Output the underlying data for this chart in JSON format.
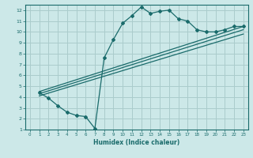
{
  "xlabel": "Humidex (Indice chaleur)",
  "xlim": [
    -0.5,
    23.5
  ],
  "ylim": [
    1,
    12.5
  ],
  "xticks": [
    0,
    1,
    2,
    3,
    4,
    5,
    6,
    7,
    8,
    9,
    10,
    11,
    12,
    13,
    14,
    15,
    16,
    17,
    18,
    19,
    20,
    21,
    22,
    23
  ],
  "yticks": [
    1,
    2,
    3,
    4,
    5,
    6,
    7,
    8,
    9,
    10,
    11,
    12
  ],
  "bg_color": "#cce8e8",
  "grid_color": "#aacccc",
  "line_color": "#1a6b6b",
  "line1_x": [
    1,
    2,
    3,
    4,
    5,
    6,
    7,
    8,
    9,
    10,
    11,
    12,
    13,
    14,
    15,
    16,
    17,
    18,
    19,
    20,
    21,
    22,
    23
  ],
  "line1_y": [
    4.4,
    3.9,
    3.2,
    2.6,
    2.3,
    2.2,
    1.1,
    7.6,
    9.3,
    10.8,
    11.5,
    12.3,
    11.7,
    11.9,
    12.0,
    11.2,
    11.0,
    10.2,
    10.0,
    10.0,
    10.2,
    10.5,
    10.5
  ],
  "line2_x": [
    1,
    23
  ],
  "line2_y": [
    4.5,
    10.5
  ],
  "line3_x": [
    1,
    23
  ],
  "line3_y": [
    4.3,
    10.2
  ],
  "line4_x": [
    1,
    23
  ],
  "line4_y": [
    4.1,
    9.8
  ]
}
